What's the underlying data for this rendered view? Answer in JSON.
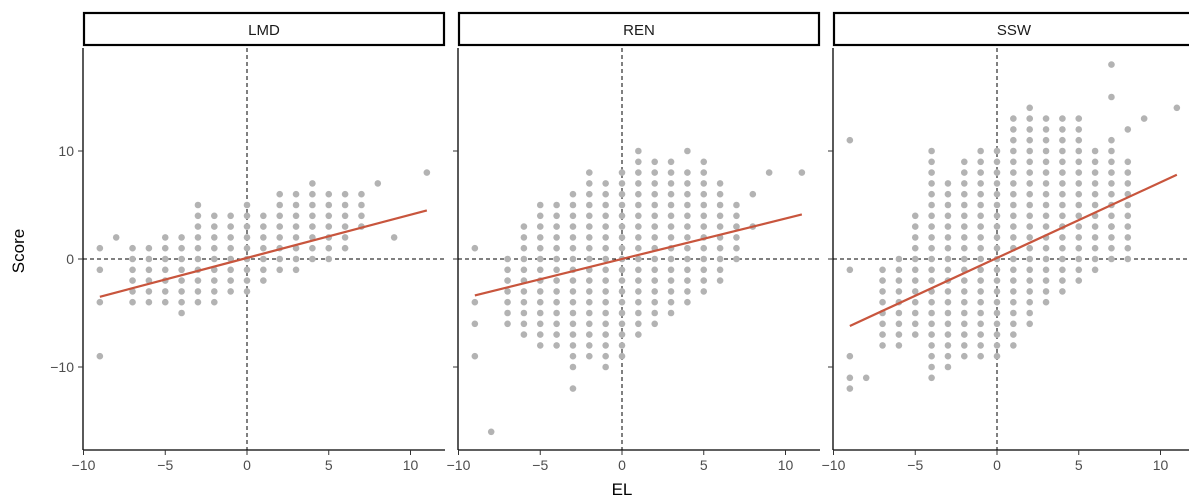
{
  "chart_data": {
    "type": "scatter",
    "facets": [
      "LMD",
      "REN",
      "SSW"
    ],
    "xlabel": "EL",
    "ylabel": "Score",
    "xlim": [
      -10,
      11.3
    ],
    "ylim": [
      -17,
      20
    ],
    "x_ticks": [
      -10,
      -5,
      0,
      5,
      10
    ],
    "x_tick_labels": [
      "−10",
      "−5",
      "0",
      "5",
      "10"
    ],
    "y_ticks": [
      -10,
      0,
      10
    ],
    "y_tick_labels": [
      "−10",
      "0",
      "10"
    ],
    "reference_lines": {
      "x": 0,
      "y": 0,
      "style": "dashed"
    },
    "grid": false,
    "colors": {
      "points": "#b3b3b3",
      "fit_line": "#c8553d",
      "axis": "#000000",
      "tick_label": "#4d4d4d"
    },
    "panels": [
      {
        "name": "LMD",
        "x_range": [
          -9,
          11
        ],
        "fit": {
          "intercept": 0.1,
          "slope": 0.4,
          "x_from": -9,
          "x_to": 11
        },
        "extra_points": [
          [
            -9,
            1
          ],
          [
            -9,
            -1
          ],
          [
            -9,
            -4
          ],
          [
            -9,
            -9
          ],
          [
            -8,
            2
          ],
          [
            8,
            7
          ],
          [
            9,
            2
          ],
          [
            11,
            8
          ]
        ],
        "columns": [
          [
            -7,
            -4,
            1
          ],
          [
            -6,
            -4,
            1
          ],
          [
            -5,
            -4,
            2
          ],
          [
            -4,
            -5,
            2
          ],
          [
            -3,
            -4,
            5
          ],
          [
            -2,
            -4,
            4
          ],
          [
            -1,
            -3,
            4
          ],
          [
            0,
            -3,
            5
          ],
          [
            1,
            -2,
            4
          ],
          [
            2,
            -1,
            6
          ],
          [
            3,
            -1,
            6
          ],
          [
            4,
            0,
            7
          ],
          [
            5,
            0,
            6
          ],
          [
            6,
            1,
            6
          ],
          [
            7,
            3,
            6
          ]
        ]
      },
      {
        "name": "REN",
        "x_range": [
          -9,
          11
        ],
        "fit": {
          "intercept": 0.0,
          "slope": 0.375,
          "x_from": -9,
          "x_to": 11
        },
        "extra_points": [
          [
            -9,
            1
          ],
          [
            -9,
            -4
          ],
          [
            -9,
            -6
          ],
          [
            -9,
            -9
          ],
          [
            -8,
            -16
          ],
          [
            -3,
            -12
          ],
          [
            4,
            10
          ],
          [
            8,
            3
          ],
          [
            8,
            6
          ],
          [
            9,
            8
          ],
          [
            11,
            8
          ]
        ],
        "columns": [
          [
            -7,
            -6,
            0
          ],
          [
            -6,
            -7,
            3
          ],
          [
            -5,
            -8,
            5
          ],
          [
            -4,
            -8,
            5
          ],
          [
            -3,
            -10,
            6
          ],
          [
            -2,
            -9,
            8
          ],
          [
            -1,
            -10,
            7
          ],
          [
            0,
            -9,
            8
          ],
          [
            1,
            -7,
            10
          ],
          [
            2,
            -6,
            9
          ],
          [
            3,
            -5,
            9
          ],
          [
            4,
            -4,
            8
          ],
          [
            5,
            -3,
            9
          ],
          [
            6,
            -2,
            7
          ],
          [
            7,
            0,
            5
          ]
        ]
      },
      {
        "name": "SSW",
        "x_range": [
          -9,
          11
        ],
        "fit": {
          "intercept": 0.1,
          "slope": 0.7,
          "x_from": -9,
          "x_to": 11
        },
        "extra_points": [
          [
            -9,
            11
          ],
          [
            -9,
            -1
          ],
          [
            -9,
            -9
          ],
          [
            -9,
            -11
          ],
          [
            -9,
            -12
          ],
          [
            -8,
            -11
          ],
          [
            7,
            3
          ],
          [
            7,
            15
          ],
          [
            7,
            18
          ],
          [
            8,
            12
          ],
          [
            9,
            13
          ],
          [
            11,
            14
          ]
        ],
        "columns": [
          [
            -7,
            -8,
            -1
          ],
          [
            -6,
            -8,
            0
          ],
          [
            -5,
            -7,
            4
          ],
          [
            -4,
            -11,
            10
          ],
          [
            -3,
            -10,
            7
          ],
          [
            -2,
            -9,
            9
          ],
          [
            -1,
            -9,
            10
          ],
          [
            0,
            -9,
            10
          ],
          [
            1,
            -8,
            13
          ],
          [
            2,
            -6,
            14
          ],
          [
            3,
            -4,
            13
          ],
          [
            4,
            -3,
            13
          ],
          [
            5,
            -2,
            13
          ],
          [
            6,
            -1,
            10
          ],
          [
            7,
            0,
            11
          ],
          [
            8,
            0,
            9
          ]
        ]
      }
    ]
  }
}
